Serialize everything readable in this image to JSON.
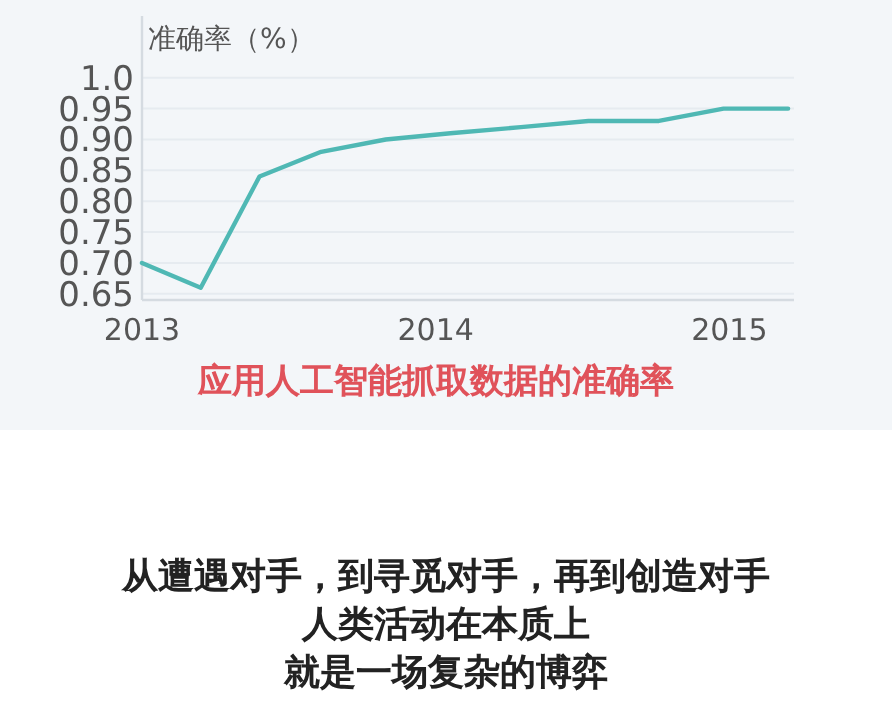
{
  "chart_data": {
    "type": "line",
    "title": "应用人工智能抓取数据的准确率",
    "ylabel": "准确率（%）",
    "x": [
      2013,
      2013.2,
      2013.4,
      2013.61,
      2013.83,
      2014.05,
      2014.29,
      2014.52,
      2014.76,
      2014.98,
      2015.2
    ],
    "series": [
      {
        "color": "#4fb8b4",
        "values": [
          0.7,
          0.66,
          0.84,
          0.88,
          0.9,
          0.91,
          0.92,
          0.93,
          0.93,
          0.95,
          0.95
        ]
      }
    ],
    "xlim": [
      2013,
      2015.22
    ],
    "xticks": [
      2013,
      2014,
      2015
    ],
    "ylim": [
      0.64,
      1.1
    ],
    "yticks": [
      {
        "value": 0.65,
        "label": "0.65"
      },
      {
        "value": 0.7,
        "label": "0.70"
      },
      {
        "value": 0.75,
        "label": "0.75"
      },
      {
        "value": 0.8,
        "label": "0.80"
      },
      {
        "value": 0.85,
        "label": "0.85"
      },
      {
        "value": 0.9,
        "label": "0.90"
      },
      {
        "value": 0.95,
        "label": "0.95"
      },
      {
        "value": 1.0,
        "label": "1.0"
      }
    ],
    "grid": "y",
    "marker": "none",
    "line_style": "solid",
    "annotations": [
      "从遭遇对手，到寻觅对手，再到创造对手",
      "人类活动在本质上",
      "就是一场复杂的博弈"
    ]
  }
}
